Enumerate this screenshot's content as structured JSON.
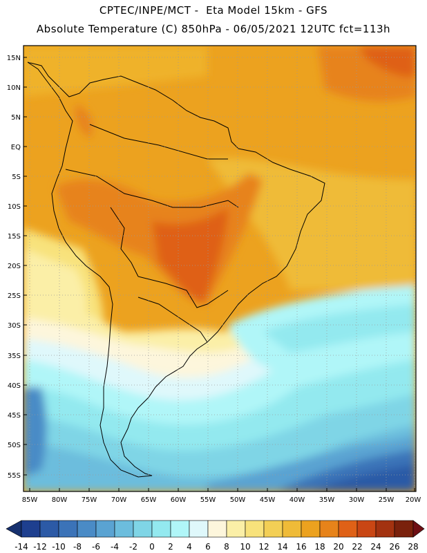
{
  "title": {
    "line1": "CPTEC/INPE/MCT -  Eta Model 15km - GFS",
    "line2": "Absolute Temperature (C) 850hPa - 06/05/2021 12UTC fct=113h"
  },
  "map": {
    "variable": "Absolute Temperature",
    "units": "C",
    "level": "850hPa",
    "lat_ticks": [
      "15N",
      "10N",
      "5N",
      "EQ",
      "5S",
      "10S",
      "15S",
      "20S",
      "25S",
      "30S",
      "35S",
      "40S",
      "45S",
      "50S",
      "55S"
    ],
    "lon_ticks": [
      "85W",
      "80W",
      "75W",
      "70W",
      "65W",
      "60W",
      "55W",
      "50W",
      "45W",
      "40W",
      "35W",
      "30W",
      "25W",
      "20W"
    ]
  },
  "colorbar": {
    "labels": [
      "-14",
      "-12",
      "-10",
      "-8",
      "-6",
      "-4",
      "-2",
      "0",
      "2",
      "4",
      "6",
      "8",
      "10",
      "12",
      "14",
      "16",
      "18",
      "20",
      "22",
      "24",
      "26",
      "28"
    ],
    "colors": [
      "#1e3f8f",
      "#2c5aa6",
      "#3b73b8",
      "#4a8bc6",
      "#5aa3d2",
      "#6cbddd",
      "#7fd5e6",
      "#93e9ef",
      "#b0f6f8",
      "#dff8fb",
      "#fdf6dc",
      "#fbefa7",
      "#f8e27b",
      "#f3cf55",
      "#efbb38",
      "#eca21f",
      "#e7831a",
      "#df6117",
      "#c94614",
      "#a33210",
      "#7a210c"
    ],
    "under_color": "#16306e",
    "over_color": "#6e0f14"
  }
}
